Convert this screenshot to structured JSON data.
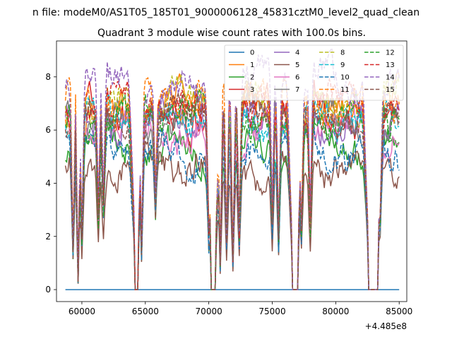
{
  "chart_data": {
    "type": "line",
    "suptitle": "n file: modeM0/AS1T05_185T01_9000006128_45831cztM0_level2_quad_clean",
    "title": "Quadrant 3 module wise count rates with 100.0s bins.",
    "xlabel": "",
    "ylabel": "",
    "x_offset_label": "+4.485e8",
    "xlim": [
      58000,
      85600
    ],
    "ylim": [
      -0.45,
      9.35
    ],
    "xticks": [
      60000,
      65000,
      70000,
      75000,
      80000,
      85000
    ],
    "xtick_labels": [
      "60000",
      "65000",
      "70000",
      "75000",
      "80000",
      "85000"
    ],
    "yticks": [
      0,
      2,
      4,
      6,
      8
    ],
    "ytick_labels": [
      "0",
      "2",
      "4",
      "6",
      "8"
    ],
    "x_range": [
      58700,
      85000
    ],
    "bin_seconds": 100,
    "grid": false,
    "legend_position": "top-right",
    "legend_columns": 4,
    "gaps": [
      [
        64200,
        64400
      ],
      [
        70200,
        70500
      ],
      [
        76600,
        77000
      ],
      [
        82600,
        83300
      ]
    ],
    "dips": [
      [
        59300,
        1.5
      ],
      [
        59700,
        0.3
      ],
      [
        60000,
        1.8
      ],
      [
        61300,
        2.8
      ],
      [
        61700,
        3.1
      ],
      [
        64700,
        1.4
      ],
      [
        65800,
        3.3
      ],
      [
        70000,
        2.0
      ],
      [
        70900,
        0.9
      ],
      [
        71400,
        1.8
      ],
      [
        71900,
        1.0
      ],
      [
        72400,
        1.9
      ],
      [
        75000,
        2.5
      ],
      [
        75500,
        1.8
      ],
      [
        77300,
        2.1
      ],
      [
        78000,
        2.4
      ],
      [
        83500,
        2.5
      ]
    ],
    "series": [
      {
        "name": "0",
        "style": "solid",
        "color": "#1f77b4",
        "level": 0.0
      },
      {
        "name": "1",
        "style": "solid",
        "color": "#ff7f0e",
        "level": 6.9
      },
      {
        "name": "2",
        "style": "solid",
        "color": "#2ca02c",
        "level": 5.3
      },
      {
        "name": "3",
        "style": "solid",
        "color": "#d62728",
        "level": 6.6
      },
      {
        "name": "4",
        "style": "solid",
        "color": "#9467bd",
        "level": 6.5
      },
      {
        "name": "5",
        "style": "solid",
        "color": "#8c564b",
        "level": 4.5
      },
      {
        "name": "6",
        "style": "solid",
        "color": "#e377c2",
        "level": 5.9
      },
      {
        "name": "7",
        "style": "solid",
        "color": "#7f7f7f",
        "level": 6.4
      },
      {
        "name": "8",
        "style": "dashed",
        "color": "#bcbd22",
        "level": 7.1
      },
      {
        "name": "9",
        "style": "dashed",
        "color": "#17becf",
        "level": 6.3
      },
      {
        "name": "10",
        "style": "dashed",
        "color": "#1f77b4",
        "level": 5.2
      },
      {
        "name": "11",
        "style": "dashed",
        "color": "#ff7f0e",
        "level": 7.2
      },
      {
        "name": "12",
        "style": "dashed",
        "color": "#2ca02c",
        "level": 6.5
      },
      {
        "name": "13",
        "style": "dashed",
        "color": "#d62728",
        "level": 6.9
      },
      {
        "name": "14",
        "style": "dashed",
        "color": "#9467bd",
        "level": 7.8
      },
      {
        "name": "15",
        "style": "dashed",
        "color": "#8c564b",
        "level": 6.6
      }
    ]
  }
}
